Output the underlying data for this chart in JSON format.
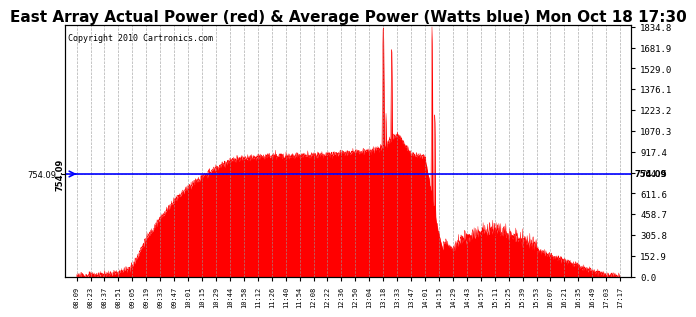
{
  "title": "East Array Actual Power (red) & Average Power (Watts blue) Mon Oct 18 17:30",
  "copyright_text": "Copyright 2010 Cartronics.com",
  "average_power": 754.09,
  "y_max": 1834.8,
  "y_min": 0.0,
  "y_ticks": [
    0.0,
    152.9,
    305.8,
    458.7,
    611.6,
    764.5,
    917.4,
    1070.3,
    1223.2,
    1376.1,
    1529.0,
    1681.9,
    1834.8
  ],
  "fill_color": "red",
  "avg_line_color": "blue",
  "background_color": "#ffffff",
  "grid_color": "#aaaaaa",
  "title_fontsize": 11,
  "avg_label": "754.09",
  "x_labels": [
    "08:09",
    "08:23",
    "08:37",
    "08:51",
    "09:05",
    "09:19",
    "09:33",
    "09:47",
    "10:01",
    "10:15",
    "10:29",
    "10:44",
    "10:58",
    "11:12",
    "11:26",
    "11:40",
    "11:54",
    "12:08",
    "12:22",
    "12:36",
    "12:50",
    "13:04",
    "13:18",
    "13:33",
    "13:47",
    "14:01",
    "14:15",
    "14:29",
    "14:43",
    "14:57",
    "15:11",
    "15:25",
    "15:39",
    "15:53",
    "16:07",
    "16:21",
    "16:35",
    "16:49",
    "17:03",
    "17:17"
  ],
  "base_power": [
    5,
    10,
    15,
    30,
    80,
    280,
    430,
    560,
    660,
    730,
    800,
    850,
    870,
    880,
    885,
    888,
    890,
    892,
    900,
    910,
    918,
    920,
    950,
    1050,
    900,
    880,
    290,
    200,
    250,
    300,
    320,
    280,
    240,
    200,
    160,
    120,
    80,
    40,
    15,
    5
  ]
}
